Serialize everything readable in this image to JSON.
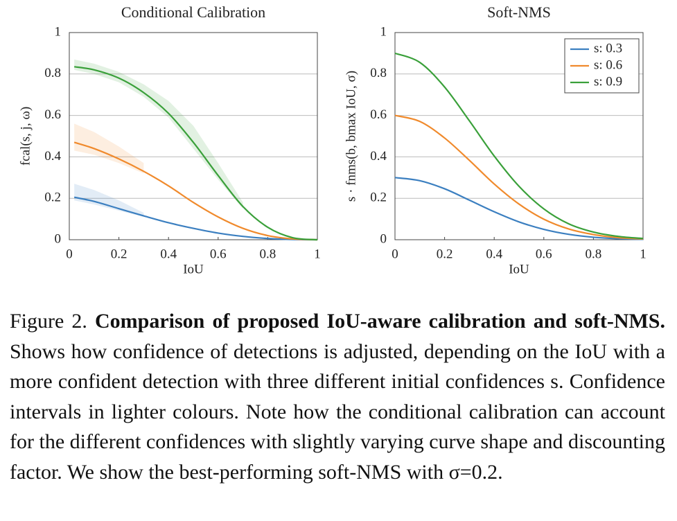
{
  "chart_data": [
    {
      "type": "line",
      "title": "Conditional Calibration",
      "x_label": "IoU",
      "y_label": "fcal(s, j, ω)",
      "x": [
        0.02,
        0.1,
        0.2,
        0.3,
        0.4,
        0.5,
        0.6,
        0.7,
        0.8,
        0.9,
        1.0
      ],
      "series": [
        {
          "color": "#3b7fc0",
          "values": [
            0.205,
            0.185,
            0.15,
            0.115,
            0.082,
            0.055,
            0.032,
            0.016,
            0.006,
            0.001,
            0
          ],
          "band": {
            "lower": [
              0.19,
              0.17,
              0.14,
              0.11,
              null,
              null,
              null,
              null,
              null,
              null,
              null
            ],
            "upper": [
              0.27,
              0.24,
              0.19,
              0.13,
              null,
              null,
              null,
              null,
              null,
              null,
              null
            ]
          }
        },
        {
          "color": "#f08a2c",
          "values": [
            0.47,
            0.44,
            0.39,
            0.33,
            0.26,
            0.18,
            0.11,
            0.055,
            0.02,
            0.004,
            0
          ],
          "band": {
            "lower": [
              0.43,
              0.41,
              0.37,
              0.32,
              null,
              null,
              null,
              null,
              null,
              null,
              null
            ],
            "upper": [
              0.56,
              0.52,
              0.45,
              0.37,
              null,
              null,
              null,
              null,
              null,
              null,
              null
            ]
          }
        },
        {
          "color": "#3aa03a",
          "values": [
            0.835,
            0.82,
            0.78,
            0.71,
            0.61,
            0.47,
            0.31,
            0.16,
            0.06,
            0.01,
            0
          ],
          "band": {
            "lower": [
              0.82,
              0.8,
              0.76,
              0.69,
              0.59,
              0.44,
              0.29,
              0.15,
              null,
              null,
              null
            ],
            "upper": [
              0.87,
              0.85,
              0.81,
              0.75,
              0.67,
              0.55,
              0.37,
              0.18,
              null,
              null,
              null
            ]
          }
        }
      ],
      "xlim": [
        0,
        1
      ],
      "ylim": [
        0,
        1
      ],
      "xticks": [
        0,
        0.2,
        0.4,
        0.6,
        0.8,
        1
      ],
      "yticks": [
        0,
        0.2,
        0.4,
        0.6,
        0.8,
        1
      ],
      "grid": true
    },
    {
      "type": "line",
      "title": "Soft-NMS",
      "x_label": "IoU",
      "y_label": "s · fnms(b, bmax IoU, σ)",
      "x": [
        0,
        0.1,
        0.2,
        0.3,
        0.4,
        0.5,
        0.6,
        0.7,
        0.8,
        0.9,
        1.0
      ],
      "series": [
        {
          "name": "s: 0.3",
          "color": "#3b7fc0",
          "values": [
            0.3,
            0.285,
            0.246,
            0.191,
            0.135,
            0.086,
            0.05,
            0.026,
            0.012,
            0.005,
            0.002
          ]
        },
        {
          "name": "s: 0.6",
          "color": "#f08a2c",
          "values": [
            0.6,
            0.571,
            0.491,
            0.383,
            0.269,
            0.172,
            0.099,
            0.052,
            0.025,
            0.01,
            0.004
          ]
        },
        {
          "name": "s: 0.9",
          "color": "#3aa03a",
          "values": [
            0.9,
            0.856,
            0.737,
            0.574,
            0.404,
            0.258,
            0.149,
            0.077,
            0.037,
            0.016,
            0.006
          ]
        }
      ],
      "xlim": [
        0,
        1
      ],
      "ylim": [
        0,
        1
      ],
      "xticks": [
        0,
        0.2,
        0.4,
        0.6,
        0.8,
        1
      ],
      "yticks": [
        0,
        0.2,
        0.4,
        0.6,
        0.8,
        1
      ],
      "grid": true,
      "legend": "upper right"
    }
  ],
  "caption": {
    "label": "Figure 2.",
    "bold": "Comparison of proposed IoU-aware calibration and soft-NMS.",
    "text": "Shows how confidence of detections is adjusted, depending on the IoU with a more confident detection with three different initial confidences s. Confidence intervals in lighter colours. Note how the conditional calibration can account for the different confidences with slightly varying curve shape and discounting factor. We show the best-performing soft-NMS with σ=0.2."
  }
}
